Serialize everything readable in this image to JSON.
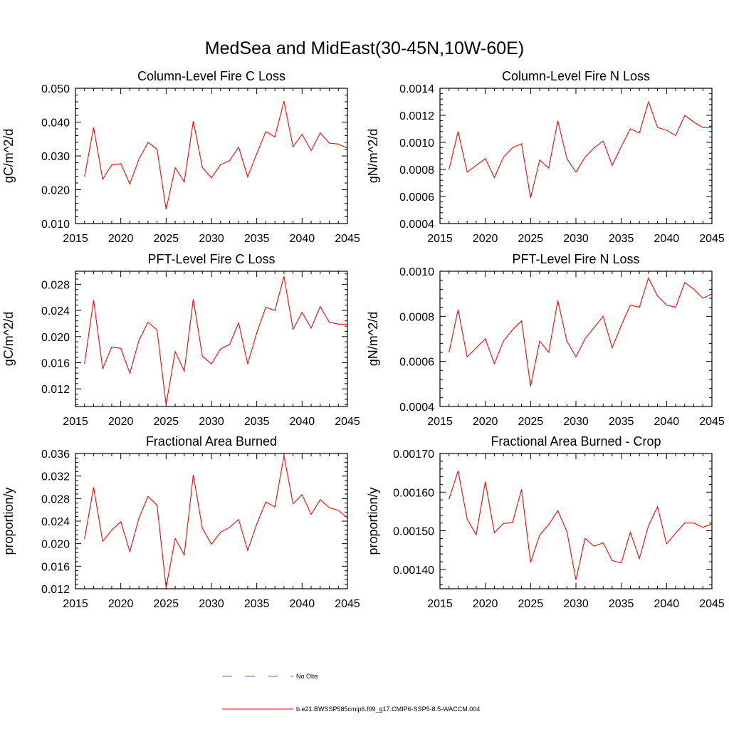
{
  "title": "MedSea and MidEast(30-45N,10W-60E)",
  "legend": {
    "obs_label": "No Obs",
    "model_label": "b.e21.BWSSP585cmip6.f09_g17.CMIP6-SSP5-8.5-WACCM.004",
    "obs_color": "#5a6fb8",
    "model_color": "#ff0000"
  },
  "chart_data": [
    {
      "type": "line",
      "title": "Column-Level Fire C Loss",
      "ylabel": "gC/m^2/d",
      "xlim": [
        2015,
        2045
      ],
      "ylim": [
        0.01,
        0.05
      ],
      "xticks": [
        2015,
        2020,
        2025,
        2030,
        2035,
        2040,
        2045
      ],
      "yticks": [
        "0.010",
        "0.020",
        "0.030",
        "0.040",
        "0.050"
      ],
      "x": [
        2016,
        2017,
        2018,
        2019,
        2020,
        2021,
        2022,
        2023,
        2024,
        2025,
        2026,
        2027,
        2028,
        2029,
        2030,
        2031,
        2032,
        2033,
        2034,
        2035,
        2036,
        2037,
        2038,
        2039,
        2040,
        2041,
        2042,
        2043,
        2044,
        2045
      ],
      "series": [
        {
          "name": "b.e21.BWSSP585cmip6.f09_g17.CMIP6-SSP5-8.5-WACCM.004",
          "values": [
            0.0238,
            0.0384,
            0.0231,
            0.0273,
            0.0277,
            0.0217,
            0.029,
            0.034,
            0.032,
            0.0142,
            0.0265,
            0.0223,
            0.0403,
            0.0266,
            0.0235,
            0.0274,
            0.0286,
            0.0326,
            0.0238,
            0.0307,
            0.0372,
            0.0356,
            0.0462,
            0.0327,
            0.0364,
            0.0316,
            0.0368,
            0.0338,
            0.0335,
            0.0323
          ]
        }
      ]
    },
    {
      "type": "line",
      "title": "Column-Level Fire N Loss",
      "ylabel": "gN/m^2/d",
      "xlim": [
        2015,
        2045
      ],
      "ylim": [
        0.0004,
        0.0014
      ],
      "xticks": [
        2015,
        2020,
        2025,
        2030,
        2035,
        2040,
        2045
      ],
      "yticks": [
        "0.0004",
        "0.0006",
        "0.0008",
        "0.0010",
        "0.0012",
        "0.0014"
      ],
      "x": [
        2016,
        2017,
        2018,
        2019,
        2020,
        2021,
        2022,
        2023,
        2024,
        2025,
        2026,
        2027,
        2028,
        2029,
        2030,
        2031,
        2032,
        2033,
        2034,
        2035,
        2036,
        2037,
        2038,
        2039,
        2040,
        2041,
        2042,
        2043,
        2044,
        2045
      ],
      "series": [
        {
          "name": "b.e21.BWSSP585cmip6.f09_g17.CMIP6-SSP5-8.5-WACCM.004",
          "values": [
            0.0008,
            0.00108,
            0.00078,
            0.00083,
            0.00088,
            0.00074,
            0.00089,
            0.00096,
            0.00099,
            0.00059,
            0.00087,
            0.00081,
            0.00116,
            0.00088,
            0.00078,
            0.00089,
            0.00096,
            0.00101,
            0.00083,
            0.00097,
            0.0011,
            0.00107,
            0.0013,
            0.00111,
            0.00109,
            0.00105,
            0.0012,
            0.00115,
            0.00111,
            0.00111
          ]
        }
      ]
    },
    {
      "type": "line",
      "title": "PFT-Level Fire C Loss",
      "ylabel": "gC/m^2/d",
      "xlim": [
        2015,
        2045
      ],
      "ylim": [
        0.0093,
        0.03
      ],
      "xticks": [
        2015,
        2020,
        2025,
        2030,
        2035,
        2040,
        2045
      ],
      "yticks": [
        "0.012",
        "0.016",
        "0.020",
        "0.024",
        "0.028"
      ],
      "x": [
        2016,
        2017,
        2018,
        2019,
        2020,
        2021,
        2022,
        2023,
        2024,
        2025,
        2026,
        2027,
        2028,
        2029,
        2030,
        2031,
        2032,
        2033,
        2034,
        2035,
        2036,
        2037,
        2038,
        2039,
        2040,
        2041,
        2042,
        2043,
        2044,
        2045
      ],
      "series": [
        {
          "name": "b.e21.BWSSP585cmip6.f09_g17.CMIP6-SSP5-8.5-WACCM.004",
          "values": [
            0.0158,
            0.0256,
            0.0151,
            0.0184,
            0.0182,
            0.0144,
            0.0194,
            0.0222,
            0.021,
            0.0096,
            0.0177,
            0.0147,
            0.0257,
            0.017,
            0.0158,
            0.0181,
            0.0188,
            0.0221,
            0.0158,
            0.0206,
            0.0245,
            0.024,
            0.0292,
            0.0211,
            0.0237,
            0.0213,
            0.0246,
            0.0222,
            0.0219,
            0.0219
          ]
        }
      ]
    },
    {
      "type": "line",
      "title": "PFT-Level Fire N Loss",
      "ylabel": "gN/m^2/d",
      "xlim": [
        2015,
        2045
      ],
      "ylim": [
        0.0004,
        0.001
      ],
      "xticks": [
        2015,
        2020,
        2025,
        2030,
        2035,
        2040,
        2045
      ],
      "yticks": [
        "0.0004",
        "0.0006",
        "0.0008",
        "0.0010"
      ],
      "x": [
        2016,
        2017,
        2018,
        2019,
        2020,
        2021,
        2022,
        2023,
        2024,
        2025,
        2026,
        2027,
        2028,
        2029,
        2030,
        2031,
        2032,
        2033,
        2034,
        2035,
        2036,
        2037,
        2038,
        2039,
        2040,
        2041,
        2042,
        2043,
        2044,
        2045
      ],
      "series": [
        {
          "name": "b.e21.BWSSP585cmip6.f09_g17.CMIP6-SSP5-8.5-WACCM.004",
          "values": [
            0.00064,
            0.00083,
            0.00062,
            0.00066,
            0.0007,
            0.00059,
            0.00069,
            0.00074,
            0.00078,
            0.00049,
            0.00069,
            0.00064,
            0.00087,
            0.00069,
            0.00062,
            0.0007,
            0.00075,
            0.0008,
            0.00066,
            0.00076,
            0.00085,
            0.00084,
            0.00097,
            0.00089,
            0.00085,
            0.00084,
            0.00095,
            0.00092,
            0.00088,
            0.0009
          ]
        }
      ]
    },
    {
      "type": "line",
      "title": "Fractional Area Burned",
      "ylabel": "proportion/y",
      "xlim": [
        2015,
        2045
      ],
      "ylim": [
        0.012,
        0.036
      ],
      "xticks": [
        2015,
        2020,
        2025,
        2030,
        2035,
        2040,
        2045
      ],
      "yticks": [
        "0.012",
        "0.016",
        "0.020",
        "0.024",
        "0.028",
        "0.032",
        "0.036"
      ],
      "x": [
        2016,
        2017,
        2018,
        2019,
        2020,
        2021,
        2022,
        2023,
        2024,
        2025,
        2026,
        2027,
        2028,
        2029,
        2030,
        2031,
        2032,
        2033,
        2034,
        2035,
        2036,
        2037,
        2038,
        2039,
        2040,
        2041,
        2042,
        2043,
        2044,
        2045
      ],
      "series": [
        {
          "name": "b.e21.BWSSP585cmip6.f09_g17.CMIP6-SSP5-8.5-WACCM.004",
          "values": [
            0.0208,
            0.03,
            0.0204,
            0.0224,
            0.0239,
            0.0186,
            0.0245,
            0.0284,
            0.0268,
            0.0122,
            0.0209,
            0.018,
            0.0322,
            0.0227,
            0.0199,
            0.022,
            0.0229,
            0.0243,
            0.0188,
            0.0235,
            0.0274,
            0.0265,
            0.0356,
            0.0271,
            0.0287,
            0.0252,
            0.0278,
            0.0264,
            0.0259,
            0.0246
          ]
        }
      ]
    },
    {
      "type": "line",
      "title": "Fractional Area Burned - Crop",
      "ylabel": "proportion/y",
      "xlim": [
        2015,
        2045
      ],
      "ylim": [
        0.00135,
        0.0017
      ],
      "xticks": [
        2015,
        2020,
        2025,
        2030,
        2035,
        2040,
        2045
      ],
      "yticks": [
        "0.00140",
        "0.00150",
        "0.00160",
        "0.00170"
      ],
      "x": [
        2016,
        2017,
        2018,
        2019,
        2020,
        2021,
        2022,
        2023,
        2024,
        2025,
        2026,
        2027,
        2028,
        2029,
        2030,
        2031,
        2032,
        2033,
        2034,
        2035,
        2036,
        2037,
        2038,
        2039,
        2040,
        2041,
        2042,
        2043,
        2044,
        2045
      ],
      "series": [
        {
          "name": "b.e21.BWSSP585cmip6.f09_g17.CMIP6-SSP5-8.5-WACCM.004",
          "values": [
            0.001582,
            0.001655,
            0.00153,
            0.00149,
            0.001627,
            0.001495,
            0.001519,
            0.001521,
            0.001607,
            0.001418,
            0.001489,
            0.001516,
            0.001552,
            0.001498,
            0.001373,
            0.00148,
            0.00146,
            0.001469,
            0.001423,
            0.001417,
            0.001496,
            0.001428,
            0.001513,
            0.001562,
            0.001466,
            0.001494,
            0.00152,
            0.00152,
            0.001509,
            0.001518
          ]
        }
      ]
    }
  ]
}
